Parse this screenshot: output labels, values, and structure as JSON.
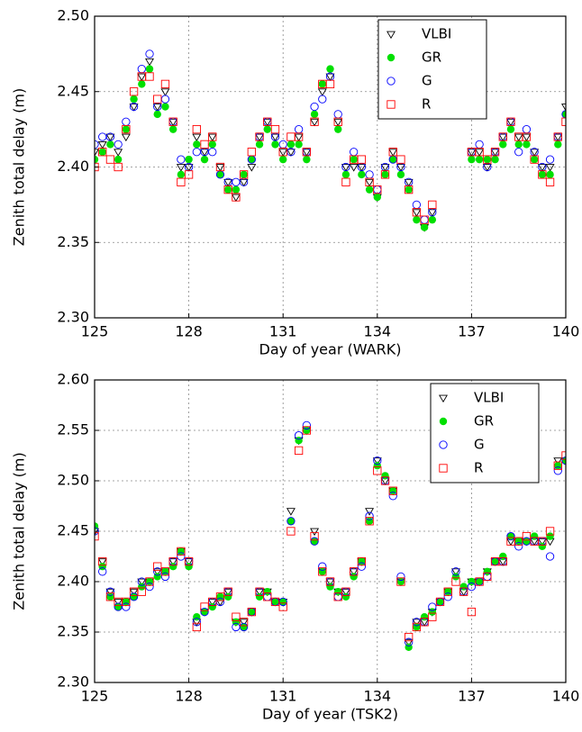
{
  "chart_data": [
    {
      "type": "scatter",
      "x_label": "Day of year (WARK)",
      "y_label": "Zenith total delay (m)",
      "x": [
        125,
        125.25,
        125.5,
        125.75,
        126,
        126.25,
        126.5,
        126.75,
        127,
        127.25,
        127.5,
        127.75,
        128,
        128.25,
        128.5,
        128.75,
        129,
        129.25,
        129.5,
        129.75,
        130,
        130.25,
        130.5,
        130.75,
        131,
        131.25,
        131.5,
        131.75,
        132,
        132.25,
        132.5,
        132.75,
        133,
        133.25,
        133.5,
        133.75,
        134,
        134.25,
        134.5,
        134.75,
        135,
        135.25,
        135.5,
        135.75,
        136,
        136.25,
        136.5,
        136.75,
        137,
        137.25,
        137.5,
        137.75,
        138,
        138.25,
        138.5,
        138.75,
        139,
        139.25,
        139.5,
        139.75,
        140
      ],
      "series": [
        {
          "name": "VLBI",
          "color": "#000000",
          "marker": "triangle-open",
          "values": [
            2.41,
            2.415,
            2.42,
            2.41,
            2.42,
            2.44,
            2.46,
            2.47,
            2.44,
            2.45,
            2.43,
            2.4,
            2.4,
            2.42,
            2.41,
            2.42,
            2.4,
            2.39,
            2.38,
            2.39,
            2.4,
            2.42,
            2.43,
            2.42,
            2.41,
            2.41,
            2.42,
            2.41,
            2.43,
            2.45,
            2.46,
            2.43,
            2.4,
            2.4,
            2.4,
            2.39,
            2.38,
            2.4,
            2.41,
            2.4,
            2.39,
            2.37,
            2.36,
            2.37,
            null,
            null,
            null,
            null,
            2.41,
            2.41,
            2.4,
            2.41,
            2.42,
            2.43,
            2.42,
            2.42,
            2.41,
            2.4,
            2.4,
            2.42,
            2.44
          ]
        },
        {
          "name": "GR",
          "color": "#00e000",
          "marker": "circle-filled",
          "values": [
            2.405,
            2.41,
            2.415,
            2.405,
            2.425,
            2.445,
            2.455,
            2.465,
            2.435,
            2.44,
            2.425,
            2.395,
            2.405,
            2.415,
            2.405,
            2.415,
            2.395,
            2.385,
            2.385,
            2.395,
            2.405,
            2.415,
            2.425,
            2.415,
            2.405,
            2.415,
            2.415,
            2.405,
            2.435,
            2.455,
            2.465,
            2.425,
            2.395,
            2.405,
            2.395,
            2.385,
            2.38,
            2.395,
            2.405,
            2.395,
            2.385,
            2.365,
            2.36,
            2.365,
            null,
            null,
            null,
            null,
            2.405,
            2.405,
            2.405,
            2.405,
            2.415,
            2.425,
            2.415,
            2.415,
            2.405,
            2.395,
            2.395,
            2.415,
            2.435
          ]
        },
        {
          "name": "G",
          "color": "#0000ff",
          "marker": "circle-open",
          "values": [
            2.415,
            2.42,
            2.42,
            2.415,
            2.43,
            2.44,
            2.465,
            2.475,
            2.44,
            2.445,
            2.43,
            2.405,
            2.4,
            2.41,
            2.41,
            2.41,
            2.395,
            2.39,
            2.39,
            2.39,
            2.405,
            2.42,
            2.43,
            2.42,
            2.415,
            2.41,
            2.425,
            2.41,
            2.44,
            2.445,
            2.46,
            2.435,
            2.4,
            2.41,
            2.4,
            2.395,
            2.385,
            2.4,
            2.405,
            2.4,
            2.39,
            2.375,
            2.365,
            2.37,
            null,
            null,
            null,
            null,
            2.41,
            2.415,
            2.4,
            2.41,
            2.42,
            2.43,
            2.41,
            2.425,
            2.41,
            2.4,
            2.405,
            2.42,
            2.435
          ]
        },
        {
          "name": "R",
          "color": "#ff0000",
          "marker": "square-open",
          "values": [
            2.4,
            2.41,
            2.405,
            2.4,
            2.425,
            2.45,
            2.46,
            2.46,
            2.445,
            2.455,
            2.43,
            2.39,
            2.395,
            2.425,
            2.415,
            2.42,
            2.4,
            2.385,
            2.38,
            2.395,
            2.41,
            2.42,
            2.43,
            2.425,
            2.41,
            2.42,
            2.42,
            2.41,
            2.43,
            2.455,
            2.455,
            2.43,
            2.39,
            2.405,
            2.405,
            2.39,
            2.385,
            2.395,
            2.41,
            2.405,
            2.385,
            2.37,
            2.365,
            2.375,
            null,
            null,
            null,
            null,
            2.41,
            2.41,
            2.405,
            2.41,
            2.42,
            2.43,
            2.42,
            2.42,
            2.405,
            2.395,
            2.39,
            2.42,
            2.43
          ]
        }
      ],
      "xlim": [
        125,
        140
      ],
      "xticks": [
        125,
        128,
        131,
        134,
        137,
        140
      ],
      "ylim": [
        2.3,
        2.5
      ],
      "yticks": [
        {
          "value": 2.3,
          "label": "2.30"
        },
        {
          "value": 2.35,
          "label": "2.35"
        },
        {
          "value": 2.4,
          "label": "2.40"
        },
        {
          "value": 2.45,
          "label": "2.45"
        },
        {
          "value": 2.5,
          "label": "2.50"
        }
      ],
      "grid": true,
      "legend": "upper right"
    },
    {
      "type": "scatter",
      "x_label": "Day of year (TSK2)",
      "y_label": "Zenith total delay (m)",
      "x": [
        125,
        125.25,
        125.5,
        125.75,
        126,
        126.25,
        126.5,
        126.75,
        127,
        127.25,
        127.5,
        127.75,
        128,
        128.25,
        128.5,
        128.75,
        129,
        129.25,
        129.5,
        129.75,
        130,
        130.25,
        130.5,
        130.75,
        131,
        131.25,
        131.5,
        131.75,
        132,
        132.25,
        132.5,
        132.75,
        133,
        133.25,
        133.5,
        133.75,
        134,
        134.25,
        134.5,
        134.75,
        135,
        135.25,
        135.5,
        135.75,
        136,
        136.25,
        136.5,
        136.75,
        137,
        137.25,
        137.5,
        137.75,
        138,
        138.25,
        138.5,
        138.75,
        139,
        139.25,
        139.5,
        139.75,
        140
      ],
      "series": [
        {
          "name": "VLBI",
          "color": "#000000",
          "marker": "triangle-open",
          "values": [
            2.45,
            2.42,
            2.39,
            2.38,
            2.38,
            2.39,
            2.4,
            2.4,
            2.41,
            2.41,
            2.42,
            2.43,
            2.42,
            2.36,
            2.37,
            2.38,
            2.38,
            2.39,
            2.36,
            2.36,
            2.37,
            2.39,
            2.39,
            2.38,
            2.38,
            2.47,
            2.54,
            2.55,
            2.45,
            2.41,
            2.4,
            2.39,
            2.39,
            2.41,
            2.42,
            2.47,
            2.52,
            2.5,
            2.49,
            2.4,
            2.34,
            2.36,
            2.36,
            2.37,
            2.38,
            2.39,
            2.41,
            2.39,
            2.4,
            2.4,
            2.41,
            2.42,
            2.42,
            2.44,
            2.44,
            2.44,
            2.44,
            2.44,
            2.44,
            2.52,
            2.52
          ]
        },
        {
          "name": "GR",
          "color": "#00e000",
          "marker": "circle-filled",
          "values": [
            2.455,
            2.415,
            2.385,
            2.375,
            2.38,
            2.385,
            2.395,
            2.4,
            2.405,
            2.41,
            2.415,
            2.43,
            2.415,
            2.365,
            2.37,
            2.375,
            2.385,
            2.385,
            2.36,
            2.355,
            2.37,
            2.385,
            2.39,
            2.38,
            2.38,
            2.46,
            2.54,
            2.55,
            2.44,
            2.41,
            2.395,
            2.39,
            2.385,
            2.405,
            2.42,
            2.46,
            2.515,
            2.505,
            2.49,
            2.4,
            2.335,
            2.355,
            2.365,
            2.37,
            2.38,
            2.39,
            2.405,
            2.395,
            2.4,
            2.4,
            2.41,
            2.42,
            2.425,
            2.445,
            2.44,
            2.44,
            2.445,
            2.435,
            2.445,
            2.515,
            2.52
          ]
        },
        {
          "name": "G",
          "color": "#0000ff",
          "marker": "circle-open",
          "values": [
            2.45,
            2.41,
            2.39,
            2.375,
            2.375,
            2.385,
            2.4,
            2.395,
            2.41,
            2.405,
            2.42,
            2.425,
            2.42,
            2.36,
            2.37,
            2.38,
            2.38,
            2.39,
            2.355,
            2.355,
            2.37,
            2.39,
            2.385,
            2.38,
            2.38,
            2.46,
            2.545,
            2.555,
            2.44,
            2.415,
            2.4,
            2.385,
            2.39,
            2.41,
            2.415,
            2.465,
            2.52,
            2.5,
            2.485,
            2.405,
            2.34,
            2.36,
            2.36,
            2.375,
            2.38,
            2.385,
            2.41,
            2.39,
            2.395,
            2.4,
            2.405,
            2.42,
            2.42,
            2.445,
            2.435,
            2.44,
            2.44,
            2.44,
            2.425,
            2.51,
            2.52
          ]
        },
        {
          "name": "R",
          "color": "#ff0000",
          "marker": "square-open",
          "values": [
            2.445,
            2.42,
            2.385,
            2.38,
            2.38,
            2.39,
            2.39,
            2.4,
            2.415,
            2.41,
            2.42,
            2.43,
            2.42,
            2.355,
            2.375,
            2.38,
            2.385,
            2.39,
            2.365,
            2.36,
            2.37,
            2.39,
            2.385,
            2.38,
            2.375,
            2.45,
            2.53,
            2.55,
            2.445,
            2.41,
            2.4,
            2.385,
            2.39,
            2.41,
            2.42,
            2.46,
            2.51,
            2.5,
            2.49,
            2.4,
            2.345,
            2.355,
            2.36,
            2.365,
            2.38,
            2.39,
            2.4,
            2.39,
            2.37,
            2.4,
            2.405,
            2.42,
            2.42,
            2.44,
            2.44,
            2.445,
            2.44,
            2.44,
            2.45,
            2.515,
            2.525
          ]
        }
      ],
      "xlim": [
        125,
        140
      ],
      "xticks": [
        125,
        128,
        131,
        134,
        137,
        140
      ],
      "ylim": [
        2.3,
        2.6
      ],
      "yticks": [
        {
          "value": 2.3,
          "label": "2.30"
        },
        {
          "value": 2.35,
          "label": "2.35"
        },
        {
          "value": 2.4,
          "label": "2.40"
        },
        {
          "value": 2.45,
          "label": "2.45"
        },
        {
          "value": 2.5,
          "label": "2.50"
        },
        {
          "value": 2.55,
          "label": "2.55"
        },
        {
          "value": 2.6,
          "label": "2.60"
        }
      ],
      "grid": true,
      "legend": "upper right"
    }
  ]
}
